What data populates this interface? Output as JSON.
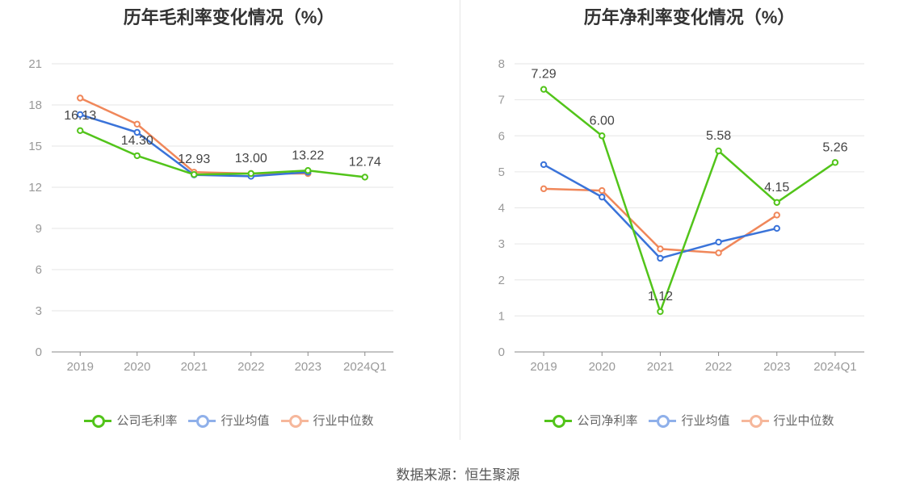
{
  "source": "数据来源：恒生聚源",
  "colors": {
    "company": "#52c41a",
    "avg": "#3a73d9",
    "median": "#f0875a",
    "axis": "#888888",
    "grid": "#e6e6e6"
  },
  "chart_data": [
    {
      "type": "line",
      "title": "历年毛利率变化情况（%）",
      "categories": [
        "2019",
        "2020",
        "2021",
        "2022",
        "2023",
        "2024Q1"
      ],
      "ylim": [
        0,
        21
      ],
      "yticks": [
        0,
        3,
        6,
        9,
        12,
        15,
        18,
        21
      ],
      "series": [
        {
          "name": "公司毛利率",
          "key": "company",
          "values": [
            16.13,
            14.3,
            12.93,
            13.0,
            13.22,
            12.74
          ],
          "labels": [
            "16.13",
            "14.30",
            "12.93",
            "13.00",
            "13.22",
            "12.74"
          ]
        },
        {
          "name": "行业均值",
          "key": "avg",
          "values": [
            17.3,
            16.0,
            12.9,
            12.8,
            13.1,
            null
          ]
        },
        {
          "name": "行业中位数",
          "key": "median",
          "values": [
            18.5,
            16.6,
            13.1,
            13.0,
            13.0,
            null
          ]
        }
      ]
    },
    {
      "type": "line",
      "title": "历年净利率变化情况（%）",
      "categories": [
        "2019",
        "2020",
        "2021",
        "2022",
        "2023",
        "2024Q1"
      ],
      "ylim": [
        0,
        8
      ],
      "yticks": [
        0,
        1,
        2,
        3,
        4,
        5,
        6,
        7,
        8
      ],
      "series": [
        {
          "name": "公司净利率",
          "key": "company",
          "values": [
            7.29,
            6.0,
            1.12,
            5.58,
            4.15,
            5.26
          ],
          "labels": [
            "7.29",
            "6.00",
            "1.12",
            "5.58",
            "4.15",
            "5.26"
          ]
        },
        {
          "name": "行业均值",
          "key": "avg",
          "values": [
            5.2,
            4.3,
            2.6,
            3.05,
            3.43,
            null
          ]
        },
        {
          "name": "行业中位数",
          "key": "median",
          "values": [
            4.53,
            4.48,
            2.86,
            2.75,
            3.8,
            null
          ]
        }
      ]
    }
  ]
}
